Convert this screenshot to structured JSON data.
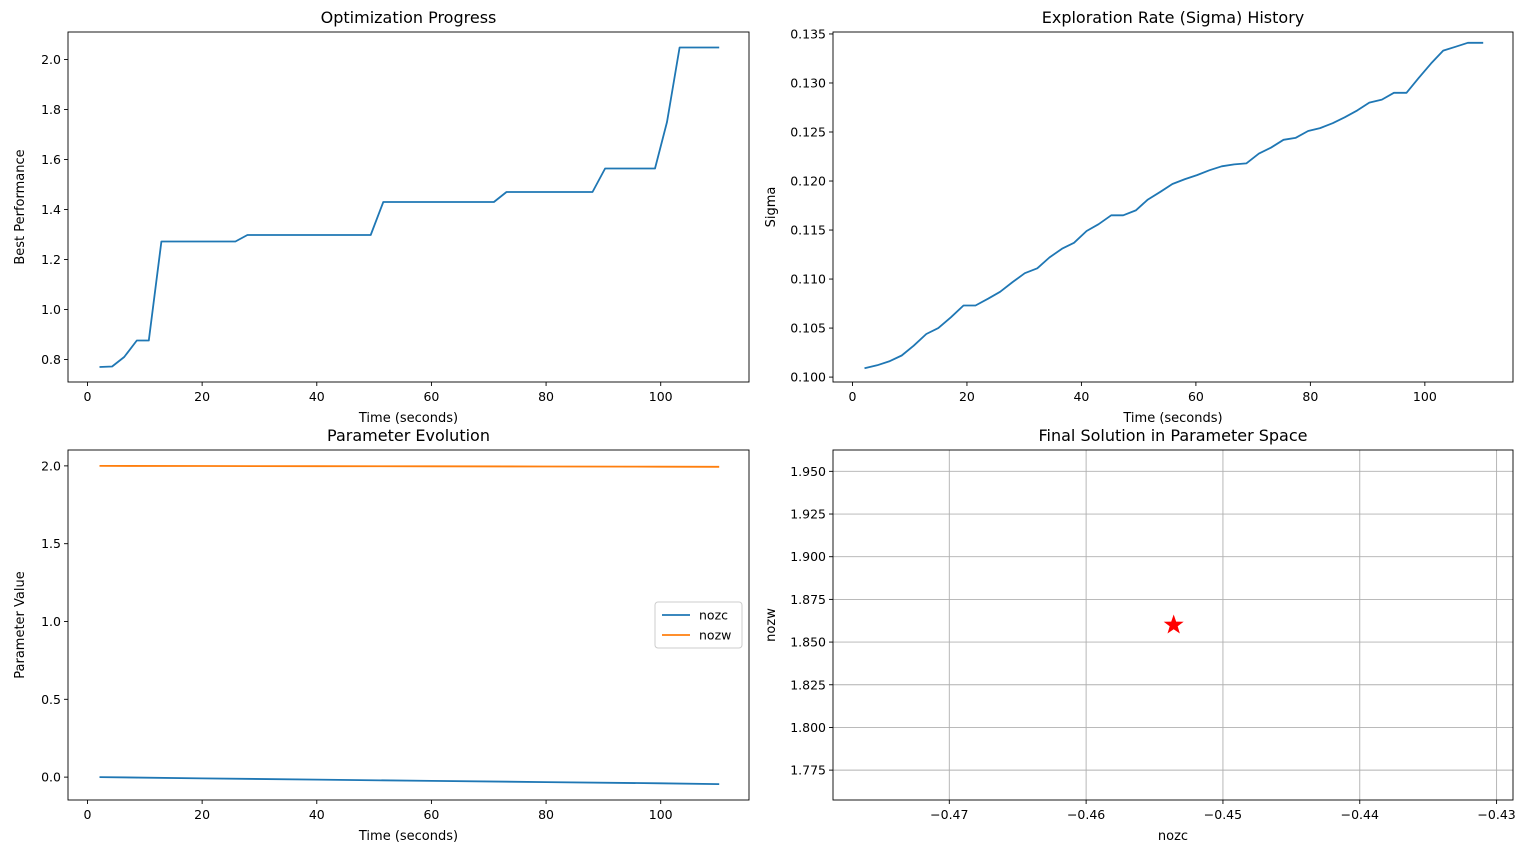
{
  "colors": {
    "blue": "#1f77b4",
    "orange": "#ff7f0e",
    "red": "#ff0000",
    "grid": "#b0b0b0"
  },
  "chart_data": [
    {
      "type": "line",
      "title": "Optimization Progress",
      "xlabel": "Time (seconds)",
      "ylabel": "Best Performance",
      "xlim": [
        -3.4,
        115.4
      ],
      "ylim": [
        0.71,
        2.11
      ],
      "xticks": [
        0,
        20,
        40,
        60,
        80,
        100
      ],
      "yticks": [
        0.8,
        1.0,
        1.2,
        1.4,
        1.6,
        1.8,
        2.0
      ],
      "tick_decimals_x": 0,
      "tick_decimals_y": 1,
      "grid": false,
      "series": [
        {
          "x": [
            2.1,
            4.3,
            6.4,
            8.6,
            10.7,
            12.9,
            25.8,
            27.9,
            49.4,
            51.6,
            70.9,
            73.1,
            88.1,
            90.3,
            99.0,
            101.1,
            103.3,
            110.2
          ],
          "y": [
            0.77,
            0.772,
            0.81,
            0.876,
            0.876,
            1.272,
            1.272,
            1.298,
            1.298,
            1.43,
            1.43,
            1.47,
            1.47,
            1.564,
            1.564,
            1.75,
            2.048,
            2.048
          ]
        }
      ]
    },
    {
      "type": "line",
      "title": "Exploration Rate (Sigma) History",
      "xlabel": "Time (seconds)",
      "ylabel": "Sigma",
      "xlim": [
        -3.4,
        115.4
      ],
      "ylim": [
        0.0995,
        0.1352
      ],
      "xticks": [
        0,
        20,
        40,
        60,
        80,
        100
      ],
      "yticks": [
        0.1,
        0.105,
        0.11,
        0.115,
        0.12,
        0.125,
        0.13,
        0.135
      ],
      "tick_decimals_x": 0,
      "tick_decimals_y": 3,
      "grid": false,
      "series": [
        {
          "x": [
            2.1,
            4.3,
            6.4,
            8.6,
            10.7,
            12.9,
            15.0,
            17.2,
            19.4,
            21.5,
            23.7,
            25.8,
            28.0,
            30.1,
            32.3,
            34.4,
            36.6,
            38.7,
            40.9,
            43.0,
            45.2,
            47.3,
            49.5,
            51.6,
            53.8,
            55.9,
            58.1,
            60.2,
            62.4,
            64.5,
            66.7,
            68.8,
            71.0,
            73.1,
            75.3,
            77.4,
            79.6,
            81.7,
            83.9,
            86.0,
            88.2,
            90.3,
            92.5,
            94.6,
            96.8,
            98.9,
            101.1,
            103.2,
            105.4,
            107.5,
            110.2
          ],
          "y": [
            0.1009,
            0.1012,
            0.1016,
            0.1022,
            0.1032,
            0.1044,
            0.105,
            0.1061,
            0.1073,
            0.1073,
            0.108,
            0.1087,
            0.1097,
            0.1106,
            0.1111,
            0.1122,
            0.1131,
            0.1137,
            0.1149,
            0.1156,
            0.1165,
            0.1165,
            0.117,
            0.1181,
            0.1189,
            0.1197,
            0.1202,
            0.1206,
            0.1211,
            0.1215,
            0.1217,
            0.1218,
            0.1228,
            0.1234,
            0.1242,
            0.1244,
            0.1251,
            0.1254,
            0.1259,
            0.1265,
            0.1272,
            0.128,
            0.1283,
            0.129,
            0.129,
            0.1305,
            0.132,
            0.1333,
            0.1337,
            0.1341,
            0.1341
          ]
        }
      ]
    },
    {
      "type": "line",
      "title": "Parameter Evolution",
      "xlabel": "Time (seconds)",
      "ylabel": "Parameter Value",
      "xlim": [
        -3.4,
        115.4
      ],
      "ylim": [
        -0.147,
        2.102
      ],
      "xticks": [
        0,
        20,
        40,
        60,
        80,
        100
      ],
      "yticks": [
        0.0,
        0.5,
        1.0,
        1.5,
        2.0
      ],
      "tick_decimals_x": 0,
      "tick_decimals_y": 1,
      "grid": false,
      "legend": "center-right",
      "series": [
        {
          "name": "nozc",
          "color_key": "blue",
          "x": [
            2.1,
            20,
            40,
            60,
            80,
            100,
            110.2
          ],
          "y": [
            0.0,
            -0.008,
            -0.016,
            -0.024,
            -0.032,
            -0.04,
            -0.045
          ]
        },
        {
          "name": "nozw",
          "color_key": "orange",
          "x": [
            2.1,
            20,
            40,
            60,
            80,
            100,
            110.2
          ],
          "y": [
            2.0,
            1.999,
            1.998,
            1.997,
            1.996,
            1.995,
            1.994
          ]
        }
      ]
    },
    {
      "type": "scatter",
      "title": "Final Solution in Parameter Space",
      "xlabel": "nozc",
      "ylabel": "nozw",
      "xlim": [
        -0.4785,
        -0.4288
      ],
      "ylim": [
        1.7575,
        1.9625
      ],
      "xticks": [
        -0.47,
        -0.46,
        -0.45,
        -0.44,
        -0.43
      ],
      "yticks": [
        1.775,
        1.8,
        1.825,
        1.85,
        1.875,
        1.9,
        1.925,
        1.95
      ],
      "tick_decimals_x": 2,
      "tick_decimals_y": 3,
      "grid": true,
      "marker": "star",
      "points": [
        {
          "x": -0.4536,
          "y": 1.86
        }
      ]
    }
  ]
}
